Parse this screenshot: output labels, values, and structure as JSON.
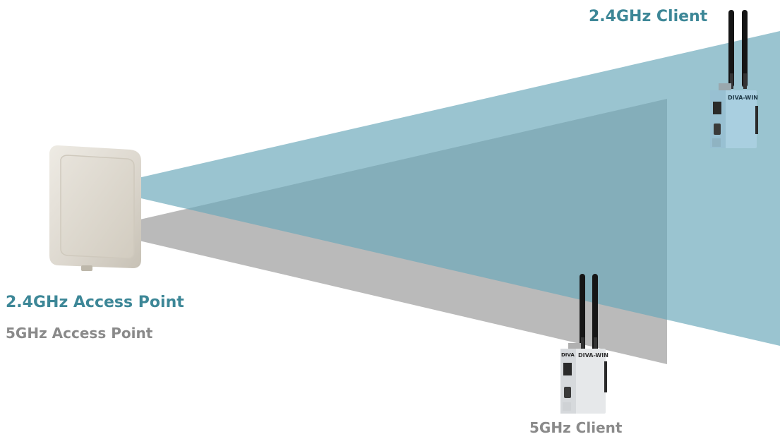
{
  "labels": {
    "client_24": "2.4GHz Client",
    "ap_24": "2.4GHz Access Point",
    "ap_5": "5GHz Access Point",
    "client_5": "5GHz Client"
  },
  "device_brand": "DIVA-WIN",
  "device_brand_short": "DIVA",
  "colors": {
    "beam_24": "#6aa8ba",
    "beam_5": "#a3a3a3",
    "label_24": "#3d8797",
    "label_5": "#8a8a8a",
    "client_body": "#a9cfe0",
    "client_body_5": "#e6e8ea",
    "antenna": "#151515",
    "ap_panel": "#ddd8cf"
  }
}
